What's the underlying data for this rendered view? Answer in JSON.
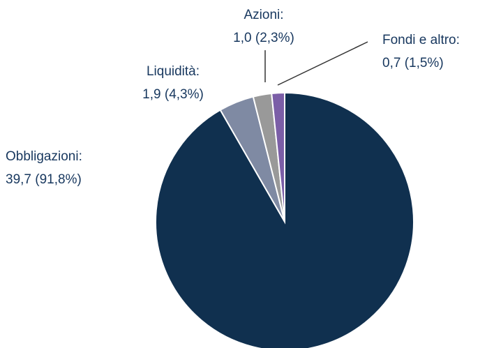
{
  "chart_data": {
    "type": "pie",
    "categories": [
      "Obbligazioni:",
      "Liquidità:",
      "Azioni:",
      "Fondi e altro:"
    ],
    "values": [
      39.7,
      1.9,
      1.0,
      0.7
    ],
    "value_labels": [
      "39,7 (91,8%)",
      "1,9 (4,3%)",
      "1,0 (2,3%)",
      "0,7 (1,5%)"
    ],
    "colors": [
      "#10304f",
      "#7f8aa3",
      "#999999",
      "#7b5ea7"
    ]
  }
}
